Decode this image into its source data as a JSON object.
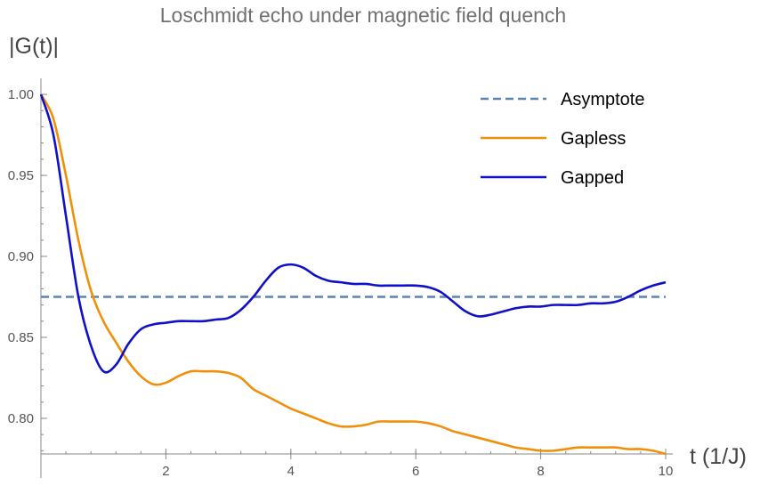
{
  "chart_data": {
    "type": "line",
    "title": "Loschmidt echo under magnetic field quench",
    "xlabel": "t (1/J)",
    "ylabel": "|G(t)|",
    "xlim": [
      0,
      10
    ],
    "ylim": [
      0.778,
      1.005
    ],
    "xticks": [
      {
        "value": 2,
        "label": "2"
      },
      {
        "value": 4,
        "label": "4"
      },
      {
        "value": 6,
        "label": "6"
      },
      {
        "value": 8,
        "label": "8"
      },
      {
        "value": 10,
        "label": "10"
      }
    ],
    "yticks": [
      {
        "value": 0.8,
        "label": "0.80"
      },
      {
        "value": 0.85,
        "label": "0.85"
      },
      {
        "value": 0.9,
        "label": "0.90"
      },
      {
        "value": 0.95,
        "label": "0.95"
      },
      {
        "value": 1.0,
        "label": "1.00"
      }
    ],
    "grid": false,
    "legend_position": "top-right",
    "series": [
      {
        "name": "Asymptote",
        "color": "#5b84b5",
        "style": "dashed",
        "x": [
          0,
          10
        ],
        "y": [
          0.875,
          0.875
        ]
      },
      {
        "name": "Gapless",
        "color": "#f0900a",
        "style": "solid",
        "x": [
          0,
          0.2,
          0.4,
          0.6,
          0.8,
          1.0,
          1.2,
          1.4,
          1.6,
          1.8,
          2.0,
          2.2,
          2.4,
          2.6,
          2.8,
          3.0,
          3.2,
          3.4,
          3.6,
          3.8,
          4.0,
          4.2,
          4.4,
          4.6,
          4.8,
          5.0,
          5.2,
          5.4,
          5.6,
          5.8,
          6.0,
          6.2,
          6.4,
          6.6,
          6.8,
          7.0,
          7.2,
          7.4,
          7.6,
          7.8,
          8.0,
          8.2,
          8.4,
          8.6,
          8.8,
          9.0,
          9.2,
          9.4,
          9.6,
          9.8,
          10.0
        ],
        "y": [
          1.0,
          0.985,
          0.95,
          0.91,
          0.879,
          0.86,
          0.847,
          0.835,
          0.826,
          0.821,
          0.822,
          0.826,
          0.829,
          0.829,
          0.829,
          0.828,
          0.825,
          0.818,
          0.814,
          0.81,
          0.806,
          0.803,
          0.8,
          0.797,
          0.795,
          0.795,
          0.796,
          0.798,
          0.798,
          0.798,
          0.798,
          0.797,
          0.795,
          0.792,
          0.79,
          0.788,
          0.786,
          0.784,
          0.782,
          0.781,
          0.78,
          0.78,
          0.781,
          0.782,
          0.782,
          0.782,
          0.782,
          0.781,
          0.781,
          0.78,
          0.778
        ]
      },
      {
        "name": "Gapped",
        "color": "#1010c8",
        "style": "solid",
        "x": [
          0,
          0.2,
          0.4,
          0.6,
          0.8,
          1.0,
          1.2,
          1.4,
          1.6,
          1.8,
          2.0,
          2.2,
          2.4,
          2.6,
          2.8,
          3.0,
          3.2,
          3.4,
          3.6,
          3.8,
          4.0,
          4.2,
          4.4,
          4.6,
          4.8,
          5.0,
          5.2,
          5.4,
          5.6,
          5.8,
          6.0,
          6.2,
          6.4,
          6.6,
          6.8,
          7.0,
          7.2,
          7.4,
          7.6,
          7.8,
          8.0,
          8.2,
          8.4,
          8.6,
          8.8,
          9.0,
          9.2,
          9.4,
          9.6,
          9.8,
          10.0
        ],
        "y": [
          1.0,
          0.975,
          0.925,
          0.875,
          0.845,
          0.829,
          0.833,
          0.846,
          0.855,
          0.858,
          0.859,
          0.86,
          0.86,
          0.86,
          0.861,
          0.862,
          0.867,
          0.875,
          0.885,
          0.893,
          0.895,
          0.893,
          0.888,
          0.885,
          0.884,
          0.883,
          0.883,
          0.882,
          0.882,
          0.882,
          0.882,
          0.881,
          0.878,
          0.872,
          0.866,
          0.863,
          0.864,
          0.866,
          0.868,
          0.869,
          0.869,
          0.87,
          0.87,
          0.87,
          0.871,
          0.871,
          0.872,
          0.875,
          0.879,
          0.882,
          0.884
        ]
      }
    ]
  }
}
